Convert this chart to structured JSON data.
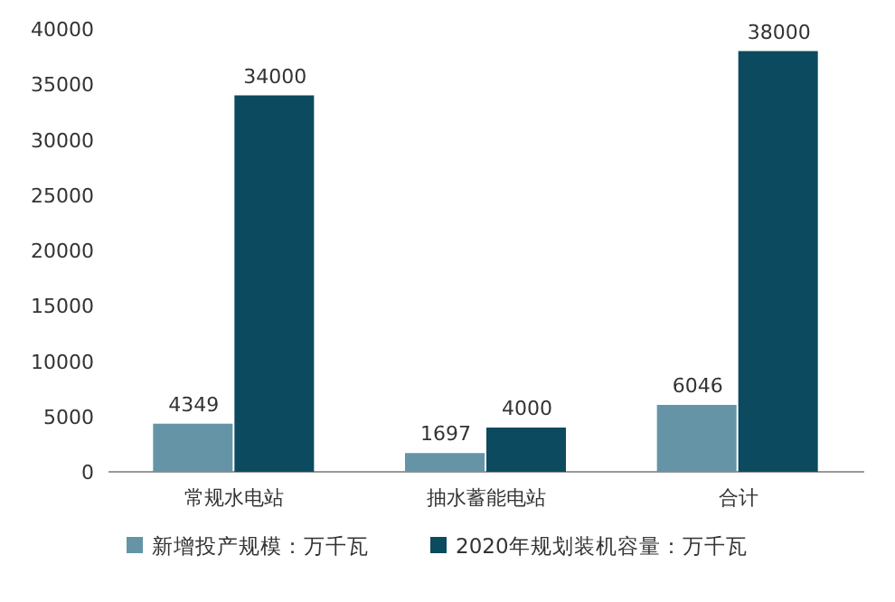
{
  "chart_data": {
    "type": "bar",
    "categories": [
      "常规水电站",
      "抽水蓄能电站",
      "合计"
    ],
    "series": [
      {
        "name": "新增投产规模：万千瓦",
        "color": "#6594a6",
        "values": [
          4349,
          1697,
          6046
        ]
      },
      {
        "name": "2020年规划装机容量：万千瓦",
        "color": "#0c4a5f",
        "values": [
          34000,
          4000,
          38000
        ]
      }
    ],
    "ylim": [
      0,
      40000
    ],
    "yticks": [
      0,
      5000,
      10000,
      15000,
      20000,
      25000,
      30000,
      35000,
      40000
    ],
    "data_labels": true,
    "legend": "bottom"
  }
}
